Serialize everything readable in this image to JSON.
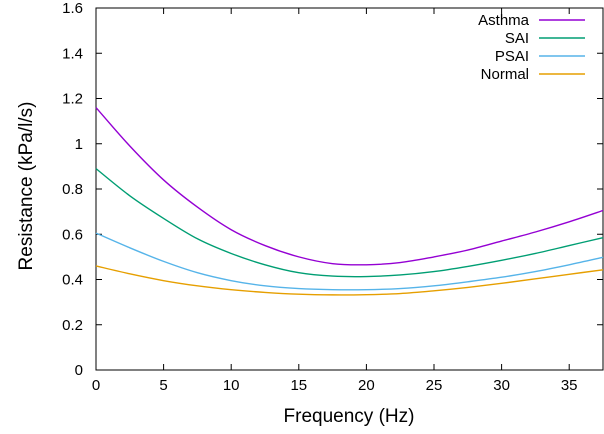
{
  "chart_data": {
    "type": "line",
    "title": "",
    "xlabel": "Frequency (Hz)",
    "ylabel": "Resistance (kPa/l/s)",
    "xlim": [
      0,
      37.5
    ],
    "ylim": [
      0,
      1.6
    ],
    "xticks": [
      0,
      5,
      10,
      15,
      20,
      25,
      30,
      35
    ],
    "yticks": [
      0,
      0.2,
      0.4,
      0.6,
      0.8,
      1,
      1.2,
      1.4,
      1.6
    ],
    "grid": false,
    "legend_position": "top-right",
    "series": [
      {
        "name": "Asthma",
        "color": "#9400d3",
        "x": [
          0,
          2.5,
          5,
          7.5,
          10,
          12.5,
          15,
          17.5,
          20,
          22.5,
          25,
          27.5,
          30,
          32.5,
          35,
          37.5
        ],
        "y": [
          1.16,
          0.99,
          0.84,
          0.72,
          0.62,
          0.55,
          0.5,
          0.47,
          0.465,
          0.475,
          0.5,
          0.53,
          0.57,
          0.61,
          0.655,
          0.705
        ]
      },
      {
        "name": "SAI",
        "color": "#009e73",
        "x": [
          0,
          2.5,
          5,
          7.5,
          10,
          12.5,
          15,
          17.5,
          20,
          22.5,
          25,
          27.5,
          30,
          32.5,
          35,
          37.5
        ],
        "y": [
          0.89,
          0.77,
          0.67,
          0.58,
          0.515,
          0.465,
          0.43,
          0.415,
          0.413,
          0.42,
          0.435,
          0.458,
          0.485,
          0.515,
          0.55,
          0.585
        ]
      },
      {
        "name": "PSAI",
        "color": "#56b4e9",
        "x": [
          0,
          2.5,
          5,
          7.5,
          10,
          12.5,
          15,
          17.5,
          20,
          22.5,
          25,
          27.5,
          30,
          32.5,
          35,
          37.5
        ],
        "y": [
          0.605,
          0.54,
          0.48,
          0.43,
          0.395,
          0.372,
          0.36,
          0.355,
          0.355,
          0.36,
          0.372,
          0.39,
          0.41,
          0.435,
          0.465,
          0.498
        ]
      },
      {
        "name": "Normal",
        "color": "#e69f00",
        "x": [
          0,
          2.5,
          5,
          7.5,
          10,
          12.5,
          15,
          17.5,
          20,
          22.5,
          25,
          27.5,
          30,
          32.5,
          35,
          37.5
        ],
        "y": [
          0.46,
          0.425,
          0.395,
          0.372,
          0.355,
          0.343,
          0.335,
          0.332,
          0.333,
          0.338,
          0.35,
          0.365,
          0.383,
          0.403,
          0.423,
          0.443
        ]
      }
    ]
  }
}
